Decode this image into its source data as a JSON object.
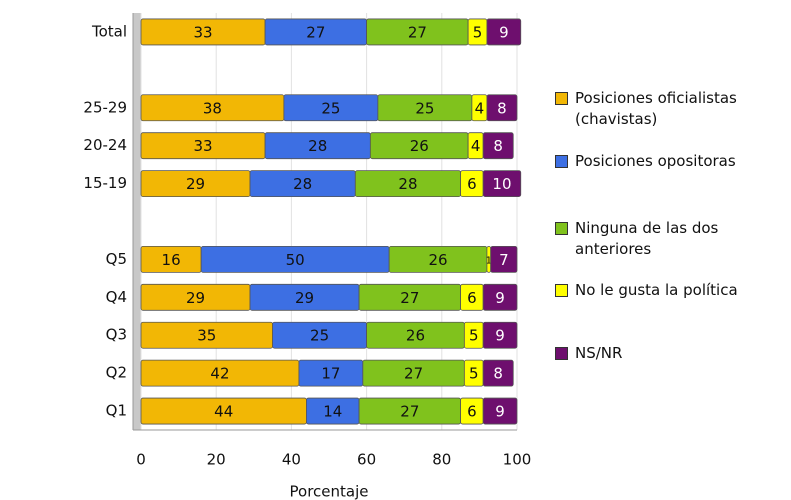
{
  "chart_data": {
    "type": "stacked-bar-horizontal",
    "categories": [
      "Total",
      null,
      "25-29",
      "20-24",
      "15-19",
      null,
      "Q5",
      "Q4",
      "Q3",
      "Q2",
      "Q1"
    ],
    "series": [
      {
        "name": "Posiciones oficialistas (chavistas)",
        "color": "#f2b705",
        "values": [
          33,
          null,
          38,
          33,
          29,
          null,
          16,
          29,
          35,
          42,
          44
        ]
      },
      {
        "name": "Posiciones opositoras",
        "color": "#3d6fe3",
        "values": [
          27,
          null,
          25,
          28,
          28,
          null,
          50,
          29,
          25,
          17,
          14
        ]
      },
      {
        "name": "Ninguna de las dos anteriores",
        "color": "#80c21d",
        "values": [
          27,
          null,
          25,
          26,
          28,
          null,
          26,
          27,
          26,
          27,
          27
        ]
      },
      {
        "name": "No le gusta la política",
        "color": "#ffff00",
        "values": [
          5,
          null,
          4,
          4,
          6,
          null,
          1,
          6,
          5,
          5,
          6
        ]
      },
      {
        "name": "NS/NR",
        "color": "#6e0f6e",
        "values": [
          9,
          null,
          8,
          8,
          10,
          null,
          7,
          9,
          9,
          8,
          9
        ]
      }
    ],
    "x_label": "Porcentaje",
    "xlim": [
      0,
      100
    ],
    "xticks": [
      0,
      20,
      40,
      60,
      80,
      100
    ],
    "grid": true
  }
}
